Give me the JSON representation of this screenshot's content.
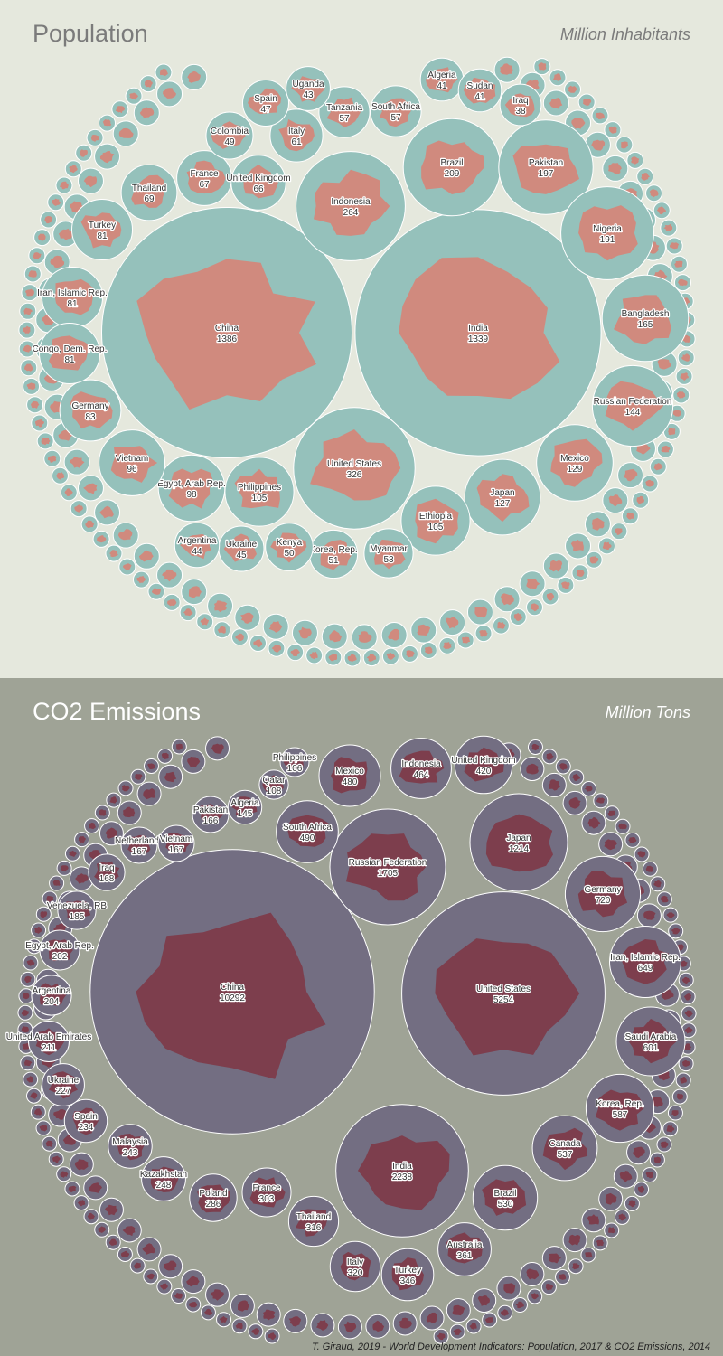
{
  "chart_data": [
    {
      "type": "bubble",
      "title": "Population",
      "unit": "Million Inhabitants",
      "colors": {
        "background": "#e5e8dd",
        "bubble": "#95c1bb",
        "shape": "#d08a7e",
        "stroke": "#ffffff"
      },
      "series": [
        {
          "name": "China",
          "value": 1386
        },
        {
          "name": "India",
          "value": 1339
        },
        {
          "name": "United States",
          "value": 326
        },
        {
          "name": "Indonesia",
          "value": 264
        },
        {
          "name": "Brazil",
          "value": 209
        },
        {
          "name": "Pakistan",
          "value": 197
        },
        {
          "name": "Nigeria",
          "value": 191
        },
        {
          "name": "Bangladesh",
          "value": 165
        },
        {
          "name": "Russian Federation",
          "value": 144
        },
        {
          "name": "Mexico",
          "value": 129
        },
        {
          "name": "Japan",
          "value": 127
        },
        {
          "name": "Ethiopia",
          "value": 105
        },
        {
          "name": "Philippines",
          "value": 105
        },
        {
          "name": "Egypt, Arab Rep.",
          "value": 98
        },
        {
          "name": "Vietnam",
          "value": 96
        },
        {
          "name": "Germany",
          "value": 83
        },
        {
          "name": "Iran, Islamic Rep.",
          "value": 81
        },
        {
          "name": "Turkey",
          "value": 81
        },
        {
          "name": "Congo, Dem. Rep.",
          "value": 81
        },
        {
          "name": "Thailand",
          "value": 69
        },
        {
          "name": "France",
          "value": 67
        },
        {
          "name": "United Kingdom",
          "value": 66
        },
        {
          "name": "Italy",
          "value": 61
        },
        {
          "name": "Tanzania",
          "value": 57
        },
        {
          "name": "South Africa",
          "value": 57
        },
        {
          "name": "Myanmar",
          "value": 53
        },
        {
          "name": "Korea, Rep.",
          "value": 51
        },
        {
          "name": "Kenya",
          "value": 50
        },
        {
          "name": "Colombia",
          "value": 49
        },
        {
          "name": "Spain",
          "value": 47
        },
        {
          "name": "Ukraine",
          "value": 45
        },
        {
          "name": "Argentina",
          "value": 44
        },
        {
          "name": "Uganda",
          "value": 43
        },
        {
          "name": "Algeria",
          "value": 41
        },
        {
          "name": "Sudan",
          "value": 41
        },
        {
          "name": "Iraq",
          "value": 38
        }
      ]
    },
    {
      "type": "bubble",
      "title": "CO2 Emissions",
      "unit": "Million Tons",
      "colors": {
        "background": "#9fa396",
        "bubble": "#736e82",
        "shape": "#7d3e4d",
        "stroke": "#ffffff"
      },
      "series": [
        {
          "name": "China",
          "value": 10292
        },
        {
          "name": "United States",
          "value": 5254
        },
        {
          "name": "India",
          "value": 2238
        },
        {
          "name": "Russian Federation",
          "value": 1705
        },
        {
          "name": "Japan",
          "value": 1214
        },
        {
          "name": "Germany",
          "value": 720
        },
        {
          "name": "Iran, Islamic Rep.",
          "value": 649
        },
        {
          "name": "Saudi Arabia",
          "value": 601
        },
        {
          "name": "Korea, Rep.",
          "value": 587
        },
        {
          "name": "Canada",
          "value": 537
        },
        {
          "name": "Brazil",
          "value": 530
        },
        {
          "name": "South Africa",
          "value": 490
        },
        {
          "name": "Mexico",
          "value": 480
        },
        {
          "name": "Indonesia",
          "value": 464
        },
        {
          "name": "United Kingdom",
          "value": 420
        },
        {
          "name": "Australia",
          "value": 361
        },
        {
          "name": "Turkey",
          "value": 346
        },
        {
          "name": "Italy",
          "value": 320
        },
        {
          "name": "Thailand",
          "value": 316
        },
        {
          "name": "France",
          "value": 303
        },
        {
          "name": "Poland",
          "value": 286
        },
        {
          "name": "Kazakhstan",
          "value": 248
        },
        {
          "name": "Malaysia",
          "value": 243
        },
        {
          "name": "Spain",
          "value": 234
        },
        {
          "name": "Ukraine",
          "value": 227
        },
        {
          "name": "United Arab Emirates",
          "value": 211
        },
        {
          "name": "Argentina",
          "value": 204
        },
        {
          "name": "Egypt, Arab Rep.",
          "value": 202
        },
        {
          "name": "Venezuela, RB",
          "value": 185
        },
        {
          "name": "Iraq",
          "value": 168
        },
        {
          "name": "Netherlands",
          "value": 167
        },
        {
          "name": "Vietnam",
          "value": 167
        },
        {
          "name": "Pakistan",
          "value": 166
        },
        {
          "name": "Algeria",
          "value": 145
        },
        {
          "name": "Qatar",
          "value": 108
        },
        {
          "name": "Philippines",
          "value": 106
        }
      ]
    }
  ],
  "source": "T. Giraud, 2019 - World Development Indicators: Population, 2017 & CO2 Emissions, 2014"
}
